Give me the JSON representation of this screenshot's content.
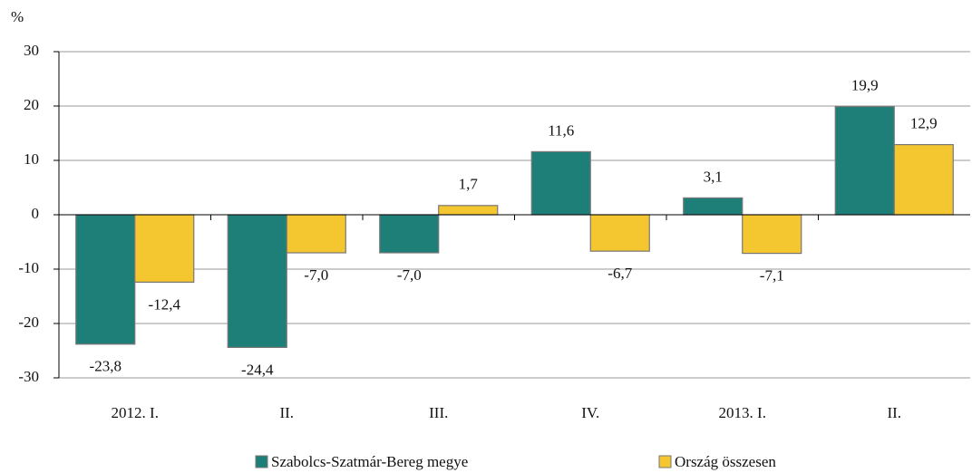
{
  "chart_data": {
    "type": "bar",
    "y_label": "%",
    "categories": [
      "2012. I.",
      "II.",
      "III.",
      "IV.",
      "2013. I.",
      "II."
    ],
    "series": [
      {
        "name": "Szabolcs-Szatmár-Bereg megye",
        "color": "#1e7f78",
        "values": [
          -23.8,
          -24.4,
          -7.0,
          11.6,
          3.1,
          19.9
        ],
        "value_labels": [
          "-23,8",
          "-24,4",
          "-7,0",
          "11,6",
          "3,1",
          "19,9"
        ]
      },
      {
        "name": "Ország összesen",
        "color": "#f4c630",
        "values": [
          -12.4,
          -7.0,
          1.7,
          -6.7,
          -7.1,
          12.9
        ],
        "value_labels": [
          "-12,4",
          "-7,0",
          "1,7",
          "-6,7",
          "-7,1",
          "12,9"
        ]
      }
    ],
    "ylim": [
      -30,
      30
    ],
    "yticks": [
      -30,
      -20,
      -10,
      0,
      10,
      20,
      30
    ],
    "grid": true,
    "legend": "bottom"
  }
}
